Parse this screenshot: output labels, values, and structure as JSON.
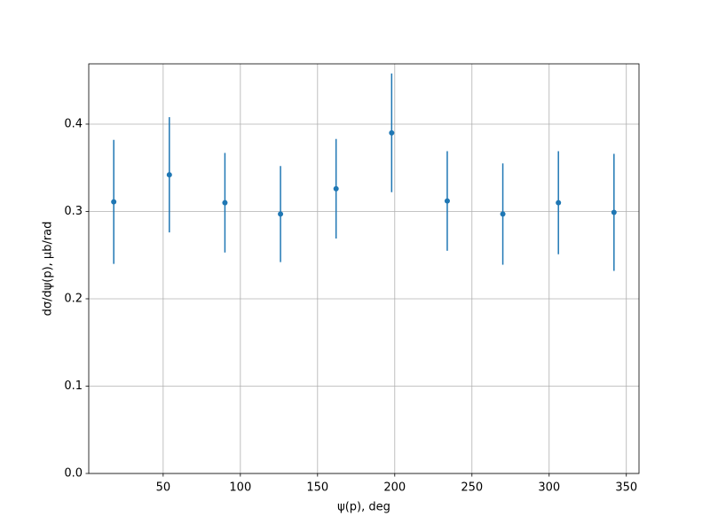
{
  "chart_data": {
    "type": "errorbar",
    "xlabel": "ψ(p), deg",
    "ylabel": "dσ/dψ(p), μb/rad",
    "series": [
      {
        "color": "#1f77b4",
        "x": [
          18,
          54,
          90,
          126,
          162,
          198,
          234,
          270,
          306,
          342
        ],
        "values": [
          0.311,
          0.342,
          0.31,
          0.297,
          0.326,
          0.39,
          0.312,
          0.297,
          0.31,
          0.299
        ],
        "errors": [
          0.071,
          0.066,
          0.057,
          0.055,
          0.057,
          0.068,
          0.057,
          0.058,
          0.059,
          0.067
        ]
      }
    ],
    "xlim": [
      1.8,
      358.2
    ],
    "xticks": [
      50,
      100,
      150,
      200,
      250,
      300,
      350
    ],
    "ylim": [
      0,
      0.469
    ],
    "yticks": [
      {
        "value": 0,
        "label": "0.0"
      },
      0.1,
      0.2,
      0.3,
      0.4
    ],
    "grid": true
  }
}
